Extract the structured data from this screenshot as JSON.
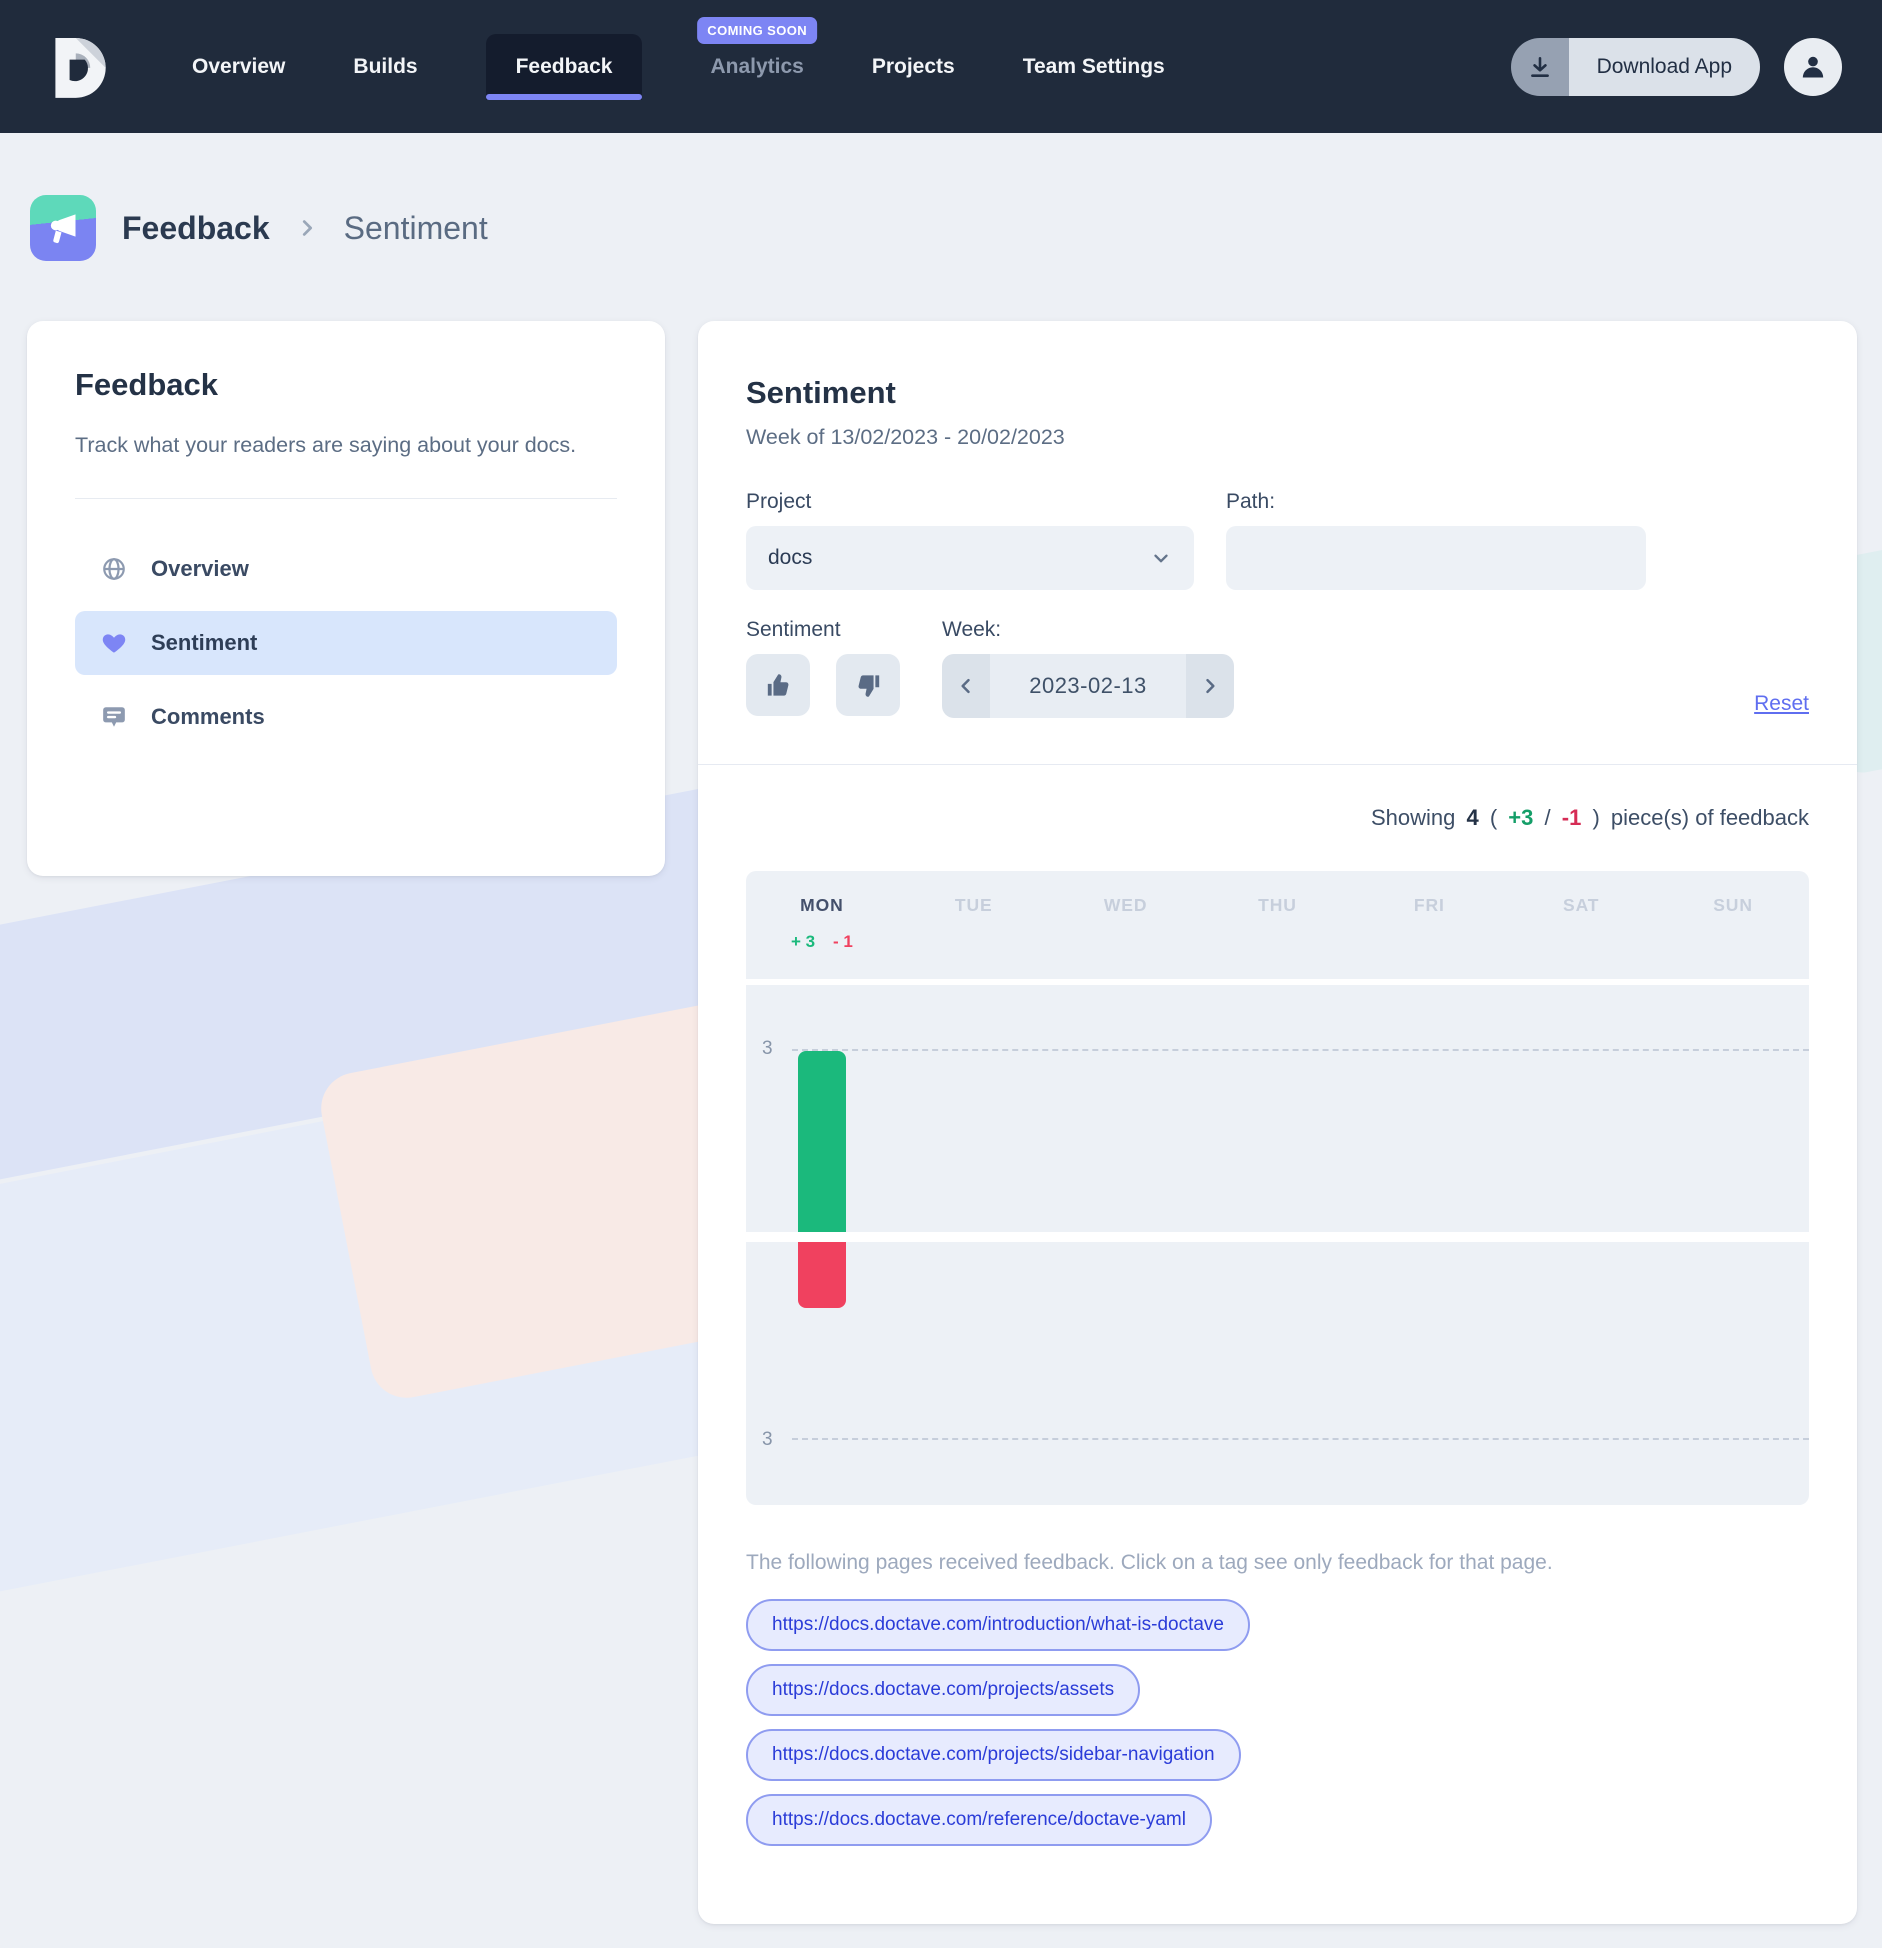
{
  "colors": {
    "nav_bg": "#202b3c",
    "accent_indigo": "#7d85f4",
    "green": "#1bb97c",
    "green_dark": "#149e68",
    "red": "#f0415f",
    "red_dark": "#d62c55",
    "tag_blue": "#2b3cd8"
  },
  "nav": {
    "items": [
      {
        "label": "Overview"
      },
      {
        "label": "Builds"
      },
      {
        "label": "Feedback",
        "active": true
      },
      {
        "label": "Analytics",
        "muted": true,
        "badge": "COMING SOON"
      },
      {
        "label": "Projects"
      },
      {
        "label": "Team Settings"
      }
    ],
    "download_label": "Download App"
  },
  "breadcrumb": {
    "section": "Feedback",
    "page": "Sentiment"
  },
  "sidebar": {
    "title": "Feedback",
    "description": "Track what your readers are saying about your docs.",
    "items": [
      {
        "label": "Overview",
        "icon": "globe"
      },
      {
        "label": "Sentiment",
        "icon": "heart",
        "active": true
      },
      {
        "label": "Comments",
        "icon": "comment"
      }
    ]
  },
  "main": {
    "title": "Sentiment",
    "subtitle": "Week of 13/02/2023 - 20/02/2023",
    "filters": {
      "project_label": "Project",
      "project_value": "docs",
      "path_label": "Path:",
      "path_value": "",
      "sentiment_label": "Sentiment",
      "week_label": "Week:",
      "week_value": "2023-02-13",
      "reset_label": "Reset"
    },
    "summary": {
      "lead": "Showing",
      "total": "4",
      "open": "(",
      "pos": "+3",
      "sep": "/",
      "neg": "-1",
      "close": ")",
      "tail": "piece(s) of feedback"
    },
    "note": "The following pages received feedback. Click on a tag see only feedback for that page.",
    "tags": [
      "https://docs.doctave.com/introduction/what-is-doctave",
      "https://docs.doctave.com/projects/assets",
      "https://docs.doctave.com/projects/sidebar-navigation",
      "https://docs.doctave.com/reference/doctave-yaml"
    ]
  },
  "chart_data": {
    "type": "bar",
    "categories": [
      "MON",
      "TUE",
      "WED",
      "THU",
      "FRI",
      "SAT",
      "SUN"
    ],
    "series": [
      {
        "name": "positive",
        "values": [
          3,
          0,
          0,
          0,
          0,
          0,
          0
        ],
        "color": "#1bb97c"
      },
      {
        "name": "negative",
        "values": [
          1,
          0,
          0,
          0,
          0,
          0,
          0
        ],
        "color": "#f0415f"
      }
    ],
    "annotations": {
      "MON": {
        "positive": "+ 3",
        "negative": "- 1"
      }
    },
    "ylim": [
      -3,
      3
    ],
    "gridlines": [
      3,
      -3
    ],
    "y_tick_label": "3",
    "grid": "dashed",
    "legend": "none"
  }
}
